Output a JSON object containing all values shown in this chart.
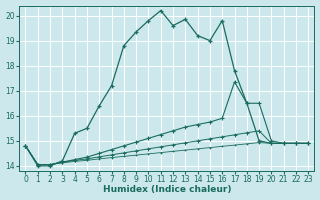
{
  "xlabel": "Humidex (Indice chaleur)",
  "background_color": "#cce8ec",
  "grid_color": "#ffffff",
  "line_color": "#1a6b60",
  "xlim": [
    -0.5,
    23.5
  ],
  "ylim": [
    13.8,
    20.4
  ],
  "xticks": [
    0,
    1,
    2,
    3,
    4,
    5,
    6,
    7,
    8,
    9,
    10,
    11,
    12,
    13,
    14,
    15,
    16,
    17,
    18,
    19,
    20,
    21,
    22,
    23
  ],
  "yticks": [
    14,
    15,
    16,
    17,
    18,
    19,
    20
  ],
  "s1_x": [
    0,
    1,
    2,
    3,
    4,
    5,
    6,
    7,
    8,
    9,
    10,
    11,
    12,
    13,
    14,
    15,
    16,
    17,
    18,
    19,
    20,
    21,
    22,
    23
  ],
  "s1_y": [
    14.8,
    14.0,
    14.0,
    14.2,
    15.3,
    15.5,
    16.4,
    17.2,
    18.8,
    19.35,
    19.8,
    20.2,
    19.6,
    19.85,
    19.2,
    19.0,
    19.8,
    17.8,
    16.5,
    15.0,
    14.9,
    14.9,
    14.9,
    14.9
  ],
  "s2_x": [
    0,
    1,
    2,
    3,
    4,
    5,
    6,
    7,
    8,
    9,
    10,
    11,
    12,
    13,
    14,
    15,
    16,
    17,
    18,
    19,
    20,
    21,
    22,
    23
  ],
  "s2_y": [
    14.8,
    14.05,
    14.05,
    14.15,
    14.25,
    14.35,
    14.5,
    14.65,
    14.8,
    14.95,
    15.1,
    15.25,
    15.4,
    15.55,
    15.65,
    15.75,
    15.9,
    17.35,
    16.5,
    16.5,
    15.0,
    14.9,
    14.9,
    14.9
  ],
  "s3_x": [
    0,
    1,
    2,
    3,
    4,
    5,
    6,
    7,
    8,
    9,
    10,
    11,
    12,
    13,
    14,
    15,
    16,
    17,
    18,
    19,
    20,
    21,
    22,
    23
  ],
  "s3_y": [
    14.8,
    14.05,
    14.05,
    14.15,
    14.22,
    14.28,
    14.36,
    14.44,
    14.52,
    14.6,
    14.68,
    14.76,
    14.84,
    14.92,
    15.0,
    15.08,
    15.16,
    15.24,
    15.32,
    15.4,
    14.9,
    14.9,
    14.9,
    14.9
  ],
  "s4_x": [
    0,
    1,
    2,
    3,
    4,
    5,
    6,
    7,
    8,
    9,
    10,
    11,
    12,
    13,
    14,
    15,
    16,
    17,
    18,
    19,
    20,
    21,
    22,
    23
  ],
  "s4_y": [
    14.8,
    14.05,
    14.05,
    14.12,
    14.18,
    14.22,
    14.28,
    14.33,
    14.38,
    14.43,
    14.48,
    14.53,
    14.58,
    14.63,
    14.68,
    14.73,
    14.78,
    14.83,
    14.88,
    14.93,
    14.9,
    14.9,
    14.9,
    14.9
  ]
}
